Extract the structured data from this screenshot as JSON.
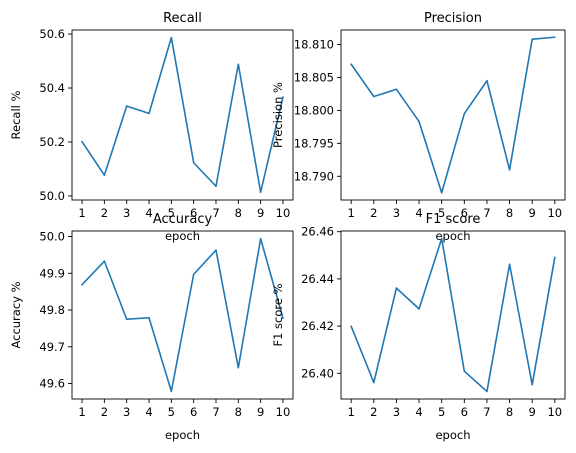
{
  "colors": {
    "series": "#1f77b4"
  },
  "chart_data": [
    {
      "type": "line",
      "title": "Recall",
      "xlabel": "epoch",
      "ylabel": "Recall %",
      "x": [
        1,
        2,
        3,
        4,
        5,
        6,
        7,
        8,
        9,
        10
      ],
      "x_tick_labels": [
        "1",
        "2",
        "3",
        "4",
        "5",
        "6",
        "7",
        "8",
        "9",
        "10"
      ],
      "values": [
        50.201,
        50.077,
        50.333,
        50.306,
        50.587,
        50.123,
        50.036,
        50.488,
        50.014,
        50.366
      ],
      "ylim": [
        49.985,
        50.615
      ],
      "y_ticks": [
        50.0,
        50.2,
        50.4,
        50.6
      ],
      "y_tick_labels": [
        "50.0",
        "50.2",
        "50.4",
        "50.6"
      ],
      "xlim": [
        0.55,
        10.45
      ]
    },
    {
      "type": "line",
      "title": "Precision",
      "xlabel": "epoch",
      "ylabel": "Precision %",
      "x": [
        1,
        2,
        3,
        4,
        5,
        6,
        7,
        8,
        9,
        10
      ],
      "x_tick_labels": [
        "1",
        "2",
        "3",
        "4",
        "5",
        "6",
        "7",
        "8",
        "9",
        "10"
      ],
      "values": [
        18.807,
        18.8021,
        18.8032,
        18.7983,
        18.7875,
        18.7995,
        18.8045,
        18.791,
        18.8108,
        18.8111
      ],
      "ylim": [
        18.7864,
        18.8122
      ],
      "y_ticks": [
        18.79,
        18.795,
        18.8,
        18.805,
        18.81
      ],
      "y_tick_labels": [
        "18.790",
        "18.795",
        "18.800",
        "18.805",
        "18.810"
      ],
      "xlim": [
        0.55,
        10.45
      ]
    },
    {
      "type": "line",
      "title": "Accuracy",
      "xlabel": "epoch",
      "ylabel": "Accuracy %",
      "x": [
        1,
        2,
        3,
        4,
        5,
        6,
        7,
        8,
        9,
        10
      ],
      "x_tick_labels": [
        "1",
        "2",
        "3",
        "4",
        "5",
        "6",
        "7",
        "8",
        "9",
        "10"
      ],
      "values": [
        49.869,
        49.933,
        49.775,
        49.779,
        49.579,
        49.897,
        49.963,
        49.643,
        49.994,
        49.778
      ],
      "ylim": [
        49.558,
        50.015
      ],
      "y_ticks": [
        49.6,
        49.7,
        49.8,
        49.9,
        50.0
      ],
      "y_tick_labels": [
        "49.6",
        "49.7",
        "49.8",
        "49.9",
        "50.0"
      ],
      "xlim": [
        0.55,
        10.45
      ]
    },
    {
      "type": "line",
      "title": "F1 score",
      "xlabel": "epoch",
      "ylabel": "F1 score %",
      "x": [
        1,
        2,
        3,
        4,
        5,
        6,
        7,
        8,
        9,
        10
      ],
      "x_tick_labels": [
        "1",
        "2",
        "3",
        "4",
        "5",
        "6",
        "7",
        "8",
        "9",
        "10"
      ],
      "values": [
        26.4199,
        26.3961,
        26.4361,
        26.4273,
        26.4571,
        26.4009,
        26.3923,
        26.4462,
        26.3952,
        26.4491
      ],
      "ylim": [
        26.3891,
        26.4603
      ],
      "y_ticks": [
        26.4,
        26.42,
        26.44,
        26.46
      ],
      "y_tick_labels": [
        "26.40",
        "26.42",
        "26.44",
        "26.46"
      ],
      "xlim": [
        0.55,
        10.45
      ]
    }
  ]
}
